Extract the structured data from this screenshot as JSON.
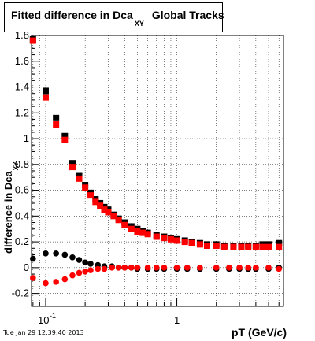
{
  "chart_data": {
    "type": "scatter",
    "title_main": "Fitted difference in Dca",
    "title_sub": "XY",
    "title_tail": "Global Tracks",
    "xlabel": "pT (GeV/c)",
    "ylabel_main": "difference in Dca",
    "ylabel_sub": "XY",
    "x_scale": "log",
    "xlim": [
      0.078,
      6.5
    ],
    "ylim": [
      -0.3,
      1.8
    ],
    "grid": true,
    "y_ticks": [
      -0.2,
      0,
      0.2,
      0.4,
      0.6,
      0.8,
      1,
      1.2,
      1.4,
      1.6,
      1.8
    ],
    "y_tick_labels": [
      "-0.2",
      "0",
      "0.2",
      "0.4",
      "0.6",
      "0.8",
      "1",
      "1.2",
      "1.4",
      "1.6",
      "1.8"
    ],
    "x_major_ticks": [
      0.1,
      1
    ],
    "x_major_labels": [
      "10",
      "-1",
      "1"
    ],
    "x_minor_ticks": [
      0.08,
      0.09,
      0.2,
      0.3,
      0.4,
      0.5,
      0.6,
      0.7,
      0.8,
      0.9,
      2,
      3,
      4,
      5,
      6
    ],
    "series": [
      {
        "color": "#000000",
        "marker": "square",
        "x": [
          0.08,
          0.1,
          0.12,
          0.14,
          0.16,
          0.18,
          0.2,
          0.22,
          0.24,
          0.26,
          0.28,
          0.3,
          0.33,
          0.36,
          0.4,
          0.45,
          0.5,
          0.55,
          0.6,
          0.7,
          0.8,
          0.9,
          1.0,
          1.15,
          1.3,
          1.5,
          1.7,
          2.0,
          2.3,
          2.7,
          3.1,
          3.5,
          4.0,
          4.5,
          5.0,
          6.0
        ],
        "y": [
          1.77,
          1.37,
          1.16,
          1.02,
          0.81,
          0.71,
          0.64,
          0.58,
          0.53,
          0.5,
          0.47,
          0.45,
          0.41,
          0.38,
          0.35,
          0.32,
          0.3,
          0.28,
          0.27,
          0.25,
          0.24,
          0.23,
          0.22,
          0.21,
          0.2,
          0.19,
          0.18,
          0.18,
          0.17,
          0.17,
          0.17,
          0.17,
          0.17,
          0.18,
          0.18,
          0.19
        ]
      },
      {
        "color": "#ff0000",
        "marker": "square",
        "x": [
          0.08,
          0.1,
          0.12,
          0.14,
          0.16,
          0.18,
          0.2,
          0.22,
          0.24,
          0.26,
          0.28,
          0.3,
          0.33,
          0.36,
          0.4,
          0.45,
          0.5,
          0.55,
          0.6,
          0.7,
          0.8,
          0.9,
          1.0,
          1.15,
          1.3,
          1.5,
          1.7,
          2.0,
          2.3,
          2.7,
          3.1,
          3.5,
          4.0,
          4.5,
          5.0,
          6.0
        ],
        "y": [
          1.76,
          1.32,
          1.11,
          0.99,
          0.78,
          0.69,
          0.62,
          0.56,
          0.51,
          0.48,
          0.45,
          0.43,
          0.4,
          0.37,
          0.33,
          0.3,
          0.28,
          0.27,
          0.26,
          0.24,
          0.23,
          0.22,
          0.21,
          0.2,
          0.19,
          0.18,
          0.17,
          0.17,
          0.16,
          0.16,
          0.16,
          0.16,
          0.16,
          0.16,
          0.16,
          0.16
        ]
      },
      {
        "color": "#000000",
        "marker": "circle",
        "x": [
          0.08,
          0.1,
          0.12,
          0.14,
          0.16,
          0.18,
          0.2,
          0.22,
          0.25,
          0.28,
          0.32,
          0.36,
          0.4,
          0.45,
          0.5,
          0.6,
          0.7,
          0.8,
          1.0,
          1.2,
          1.5,
          2.0,
          2.5,
          3.0,
          3.5,
          4.0,
          5.0,
          6.0
        ],
        "y": [
          0.07,
          0.11,
          0.11,
          0.1,
          0.08,
          0.06,
          0.04,
          0.03,
          0.02,
          0.01,
          0.01,
          0.0,
          0.0,
          0.0,
          -0.01,
          -0.01,
          -0.01,
          -0.01,
          -0.01,
          -0.01,
          -0.01,
          -0.01,
          -0.01,
          -0.01,
          -0.01,
          -0.01,
          -0.01,
          0.0
        ]
      },
      {
        "color": "#ff0000",
        "marker": "circle",
        "x": [
          0.08,
          0.1,
          0.12,
          0.14,
          0.16,
          0.18,
          0.2,
          0.22,
          0.25,
          0.28,
          0.32,
          0.36,
          0.4,
          0.45,
          0.5,
          0.6,
          0.7,
          0.8,
          1.0,
          1.2,
          1.5,
          2.0,
          2.5,
          3.0,
          3.5,
          4.0,
          5.0,
          6.0
        ],
        "y": [
          -0.08,
          -0.12,
          -0.11,
          -0.09,
          -0.06,
          -0.04,
          -0.03,
          -0.02,
          -0.01,
          -0.01,
          0.0,
          0.0,
          0.0,
          0.0,
          0.0,
          0.0,
          0.0,
          0.0,
          0.0,
          0.0,
          0.0,
          0.0,
          0.0,
          0.0,
          0.0,
          0.0,
          0.0,
          -0.01
        ]
      }
    ]
  },
  "footer": {
    "timestamp": "Tue Jan 29 12:39:40 2013"
  }
}
